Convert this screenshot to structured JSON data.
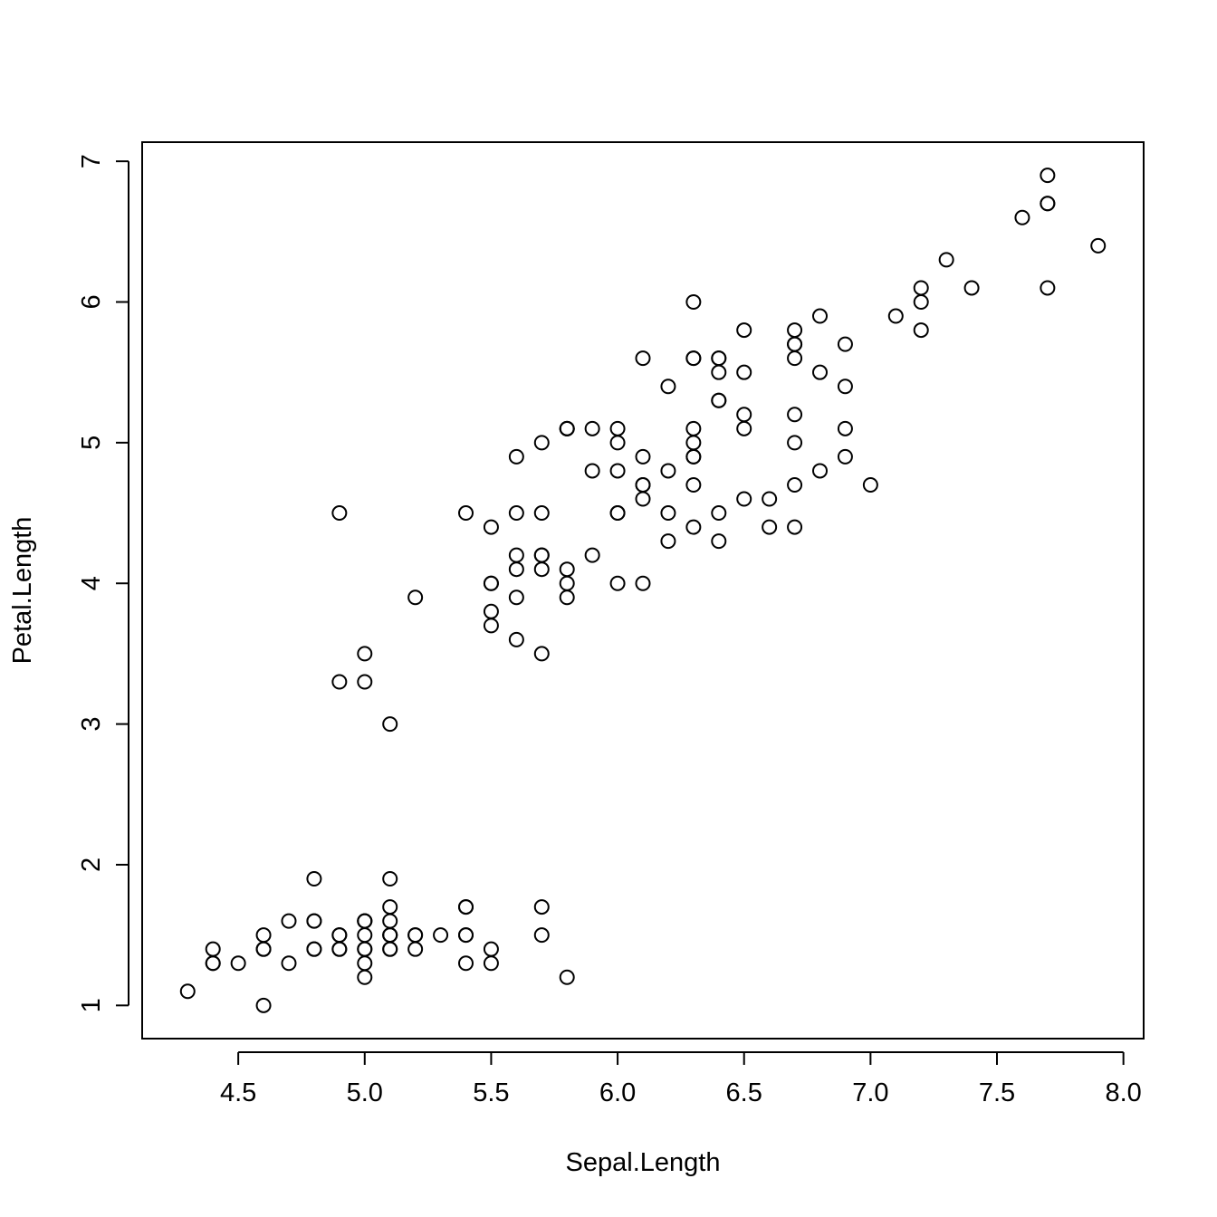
{
  "chart_data": {
    "type": "scatter",
    "title": "",
    "xlabel": "Sepal.Length",
    "ylabel": "Petal.Length",
    "xlim": [
      4.12,
      8.08
    ],
    "ylim": [
      0.764,
      7.136
    ],
    "x_ticks": [
      "4.5",
      "5.0",
      "5.5",
      "6.0",
      "6.5",
      "7.0",
      "7.5",
      "8.0"
    ],
    "y_ticks": [
      "1",
      "2",
      "3",
      "4",
      "5",
      "6",
      "7"
    ],
    "grid": false,
    "legend": false,
    "points": [
      [
        5.1,
        1.4
      ],
      [
        4.9,
        1.4
      ],
      [
        4.7,
        1.3
      ],
      [
        4.6,
        1.5
      ],
      [
        5.0,
        1.4
      ],
      [
        5.4,
        1.7
      ],
      [
        4.6,
        1.4
      ],
      [
        5.0,
        1.5
      ],
      [
        4.4,
        1.4
      ],
      [
        4.9,
        1.5
      ],
      [
        5.4,
        1.5
      ],
      [
        4.8,
        1.6
      ],
      [
        4.8,
        1.4
      ],
      [
        4.3,
        1.1
      ],
      [
        5.8,
        1.2
      ],
      [
        5.7,
        1.5
      ],
      [
        5.4,
        1.3
      ],
      [
        5.1,
        1.4
      ],
      [
        5.7,
        1.7
      ],
      [
        5.1,
        1.5
      ],
      [
        5.4,
        1.7
      ],
      [
        5.1,
        1.5
      ],
      [
        4.6,
        1.0
      ],
      [
        5.1,
        1.7
      ],
      [
        4.8,
        1.9
      ],
      [
        5.0,
        1.6
      ],
      [
        5.0,
        1.6
      ],
      [
        5.2,
        1.5
      ],
      [
        5.2,
        1.4
      ],
      [
        4.7,
        1.6
      ],
      [
        4.8,
        1.6
      ],
      [
        5.4,
        1.5
      ],
      [
        5.2,
        1.5
      ],
      [
        5.5,
        1.4
      ],
      [
        4.9,
        1.5
      ],
      [
        5.0,
        1.2
      ],
      [
        5.5,
        1.3
      ],
      [
        4.9,
        1.4
      ],
      [
        4.4,
        1.3
      ],
      [
        5.1,
        1.5
      ],
      [
        5.0,
        1.3
      ],
      [
        4.5,
        1.3
      ],
      [
        4.4,
        1.3
      ],
      [
        5.0,
        1.6
      ],
      [
        5.1,
        1.9
      ],
      [
        4.8,
        1.4
      ],
      [
        5.1,
        1.6
      ],
      [
        4.6,
        1.4
      ],
      [
        5.3,
        1.5
      ],
      [
        5.0,
        1.4
      ],
      [
        7.0,
        4.7
      ],
      [
        6.4,
        4.5
      ],
      [
        6.9,
        4.9
      ],
      [
        5.5,
        4.0
      ],
      [
        6.5,
        4.6
      ],
      [
        5.7,
        4.5
      ],
      [
        6.3,
        4.7
      ],
      [
        4.9,
        3.3
      ],
      [
        6.6,
        4.6
      ],
      [
        5.2,
        3.9
      ],
      [
        5.0,
        3.5
      ],
      [
        5.9,
        4.2
      ],
      [
        6.0,
        4.0
      ],
      [
        6.1,
        4.7
      ],
      [
        5.6,
        3.6
      ],
      [
        6.7,
        4.4
      ],
      [
        5.6,
        4.5
      ],
      [
        5.8,
        4.1
      ],
      [
        6.2,
        4.5
      ],
      [
        5.6,
        3.9
      ],
      [
        5.9,
        4.8
      ],
      [
        6.1,
        4.0
      ],
      [
        6.3,
        4.9
      ],
      [
        6.1,
        4.7
      ],
      [
        6.4,
        4.3
      ],
      [
        6.6,
        4.4
      ],
      [
        6.8,
        4.8
      ],
      [
        6.7,
        5.0
      ],
      [
        6.0,
        4.5
      ],
      [
        5.7,
        3.5
      ],
      [
        5.5,
        3.8
      ],
      [
        5.5,
        3.7
      ],
      [
        5.8,
        3.9
      ],
      [
        6.0,
        5.1
      ],
      [
        5.4,
        4.5
      ],
      [
        6.0,
        4.5
      ],
      [
        6.7,
        4.7
      ],
      [
        6.3,
        4.4
      ],
      [
        5.6,
        4.1
      ],
      [
        5.5,
        4.0
      ],
      [
        5.5,
        4.4
      ],
      [
        6.1,
        4.6
      ],
      [
        5.8,
        4.0
      ],
      [
        5.0,
        3.3
      ],
      [
        5.6,
        4.2
      ],
      [
        5.7,
        4.2
      ],
      [
        5.7,
        4.2
      ],
      [
        6.2,
        4.3
      ],
      [
        5.1,
        3.0
      ],
      [
        5.7,
        4.1
      ],
      [
        6.3,
        6.0
      ],
      [
        5.8,
        5.1
      ],
      [
        7.1,
        5.9
      ],
      [
        6.3,
        5.6
      ],
      [
        6.5,
        5.8
      ],
      [
        7.6,
        6.6
      ],
      [
        4.9,
        4.5
      ],
      [
        7.3,
        6.3
      ],
      [
        6.7,
        5.8
      ],
      [
        7.2,
        6.1
      ],
      [
        6.5,
        5.1
      ],
      [
        6.4,
        5.3
      ],
      [
        6.8,
        5.5
      ],
      [
        5.7,
        5.0
      ],
      [
        5.8,
        5.1
      ],
      [
        6.4,
        5.3
      ],
      [
        6.5,
        5.5
      ],
      [
        7.7,
        6.7
      ],
      [
        7.7,
        6.9
      ],
      [
        6.0,
        5.0
      ],
      [
        6.9,
        5.7
      ],
      [
        5.6,
        4.9
      ],
      [
        7.7,
        6.7
      ],
      [
        6.3,
        4.9
      ],
      [
        6.7,
        5.7
      ],
      [
        7.2,
        6.0
      ],
      [
        6.2,
        4.8
      ],
      [
        6.1,
        4.9
      ],
      [
        6.4,
        5.6
      ],
      [
        7.2,
        5.8
      ],
      [
        7.4,
        6.1
      ],
      [
        7.9,
        6.4
      ],
      [
        6.4,
        5.6
      ],
      [
        6.3,
        5.1
      ],
      [
        6.1,
        5.6
      ],
      [
        7.7,
        6.1
      ],
      [
        6.3,
        5.6
      ],
      [
        6.4,
        5.5
      ],
      [
        6.0,
        4.8
      ],
      [
        6.9,
        5.4
      ],
      [
        6.7,
        5.6
      ],
      [
        6.9,
        5.1
      ],
      [
        5.8,
        5.1
      ],
      [
        6.8,
        5.9
      ],
      [
        6.7,
        5.7
      ],
      [
        6.7,
        5.2
      ],
      [
        6.3,
        5.0
      ],
      [
        6.5,
        5.2
      ],
      [
        6.2,
        5.4
      ],
      [
        5.9,
        5.1
      ]
    ]
  }
}
